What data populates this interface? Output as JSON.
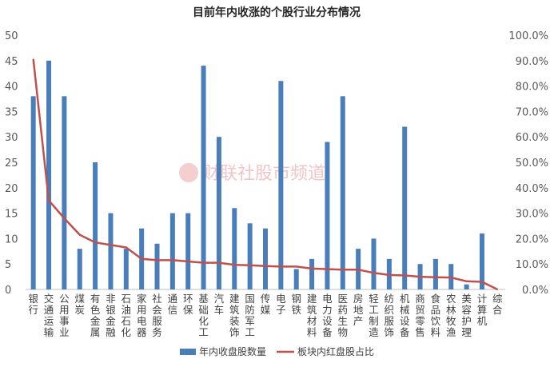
{
  "chart_data": {
    "type": "bar",
    "title": "目前年内收涨的个股行业分布情况",
    "watermark": "财联社股市频道",
    "categories": [
      "银行",
      "交通运输",
      "公用事业",
      "煤炭",
      "有色金属",
      "非银金融",
      "石油石化",
      "家用电器",
      "社会服务",
      "通信",
      "环保",
      "基础化工",
      "汽车",
      "建筑装饰",
      "国防军工",
      "传媒",
      "电子",
      "钢铁",
      "建筑材料",
      "电力设备",
      "医药生物",
      "房地产",
      "轻工制造",
      "纺织服饰",
      "机械设备",
      "商贸零售",
      "食品饮料",
      "农林牧渔",
      "美容护理",
      "计算机",
      "综合"
    ],
    "y_left": {
      "ylim": [
        0,
        50
      ],
      "ticks": [
        "0",
        "5",
        "10",
        "15",
        "20",
        "25",
        "30",
        "35",
        "40",
        "45",
        "50"
      ]
    },
    "y_right": {
      "ylim": [
        0,
        100
      ],
      "ticks": [
        "0.0%",
        "10.0%",
        "20.0%",
        "30.0%",
        "40.0%",
        "50.0%",
        "60.0%",
        "70.0%",
        "80.0%",
        "90.0%",
        "100.0%"
      ]
    },
    "series": [
      {
        "name": "年内收盘股数量",
        "type": "bar",
        "axis": "left",
        "color": "#4a7ebb",
        "values": [
          38,
          45,
          38,
          8,
          25,
          15,
          8,
          12,
          9,
          15,
          15,
          44,
          30,
          16,
          13,
          12,
          41,
          4,
          6,
          29,
          38,
          8,
          10,
          6,
          32,
          5,
          6,
          5,
          1,
          11,
          0
        ]
      },
      {
        "name": "板块内红盘股占比",
        "type": "line",
        "axis": "right",
        "color": "#c0504d",
        "values": [
          90.5,
          35,
          28,
          21.5,
          18.5,
          17.5,
          16.5,
          12,
          11.5,
          11.5,
          11,
          10.5,
          10.5,
          9.7,
          9.5,
          9.2,
          9,
          9,
          8.2,
          8,
          7.8,
          7.8,
          6.5,
          5.7,
          5.5,
          5,
          4.8,
          4.7,
          3.2,
          3,
          0
        ]
      }
    ],
    "legend_position": "bottom-center",
    "grid": false
  }
}
